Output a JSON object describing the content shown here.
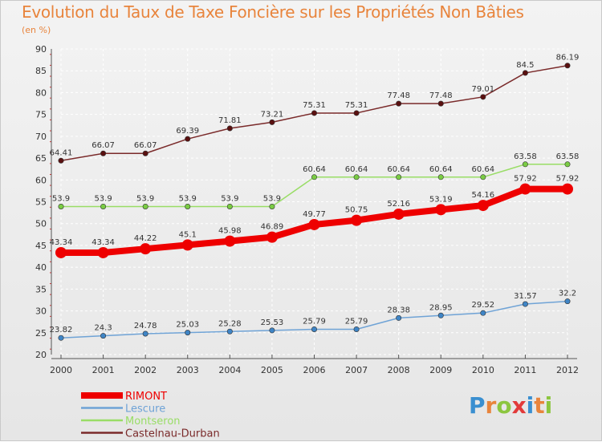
{
  "chart_data": {
    "type": "line",
    "title": "Evolution du Taux de Taxe Foncière sur les Propriétés Non Bâties",
    "subtitle": "(en %)",
    "categories": [
      "2000",
      "2001",
      "2002",
      "2003",
      "2004",
      "2005",
      "2006",
      "2007",
      "2008",
      "2009",
      "2010",
      "2011",
      "2012"
    ],
    "ylim": [
      20,
      90
    ],
    "yticks": [
      20,
      25,
      30,
      35,
      40,
      45,
      50,
      55,
      60,
      65,
      70,
      75,
      80,
      85,
      90
    ],
    "grid": true,
    "legend_position": "bottom-left",
    "series": [
      {
        "name": "Castelnau-Durban",
        "color": "#7a2a2a",
        "marker": "#5a1010",
        "values": [
          64.41,
          66.07,
          66.07,
          69.39,
          71.81,
          73.21,
          75.31,
          75.31,
          77.48,
          77.48,
          79.01,
          84.5,
          86.19
        ],
        "labels": [
          "64.41",
          "66.07",
          "66.07",
          "69.39",
          "71.81",
          "73.21",
          "75.31",
          "75.31",
          "77.48",
          "77.48",
          "79.01",
          "84.5",
          "86.19"
        ]
      },
      {
        "name": "Montseron",
        "color": "#99dd66",
        "marker": "#7acc44",
        "values": [
          53.9,
          53.9,
          53.9,
          53.9,
          53.9,
          53.9,
          60.64,
          60.64,
          60.64,
          60.64,
          60.64,
          63.58,
          63.58
        ],
        "labels": [
          "53.9",
          "53.9",
          "53.9",
          "53.9",
          "53.9",
          "53.9",
          "60.64",
          "60.64",
          "60.64",
          "60.64",
          "60.64",
          "63.58",
          "63.58"
        ]
      },
      {
        "name": "RIMONT",
        "color": "#ee0000",
        "marker": "#ee0000",
        "values": [
          43.34,
          43.34,
          44.22,
          45.1,
          45.98,
          46.89,
          49.77,
          50.75,
          52.16,
          53.19,
          54.16,
          57.92,
          57.92
        ],
        "labels": [
          "43.34",
          "43.34",
          "44.22",
          "45.1",
          "45.98",
          "46.89",
          "49.77",
          "50.75",
          "52.16",
          "53.19",
          "54.16",
          "57.92",
          "57.92"
        ]
      },
      {
        "name": "Lescure",
        "color": "#6fa3d6",
        "marker": "#3f85c6",
        "values": [
          23.82,
          24.3,
          24.78,
          25.03,
          25.28,
          25.53,
          25.79,
          25.79,
          28.38,
          28.95,
          29.52,
          31.57,
          32.2
        ],
        "labels": [
          "23.82",
          "24.3",
          "24.78",
          "25.03",
          "25.28",
          "25.53",
          "25.79",
          "25.79",
          "28.38",
          "28.95",
          "29.52",
          "31.57",
          "32.2"
        ]
      }
    ],
    "legend": [
      {
        "name": "RIMONT",
        "color": "#ee0000"
      },
      {
        "name": "Lescure",
        "color": "#6fa3d6"
      },
      {
        "name": "Montseron",
        "color": "#99dd66"
      },
      {
        "name": "Castelnau-Durban",
        "color": "#7a2a2a"
      }
    ]
  },
  "logo": {
    "letters": [
      {
        "ch": "P",
        "color": "#3a8fd0"
      },
      {
        "ch": "r",
        "color": "#e8843c"
      },
      {
        "ch": "o",
        "color": "#8cc63f"
      },
      {
        "ch": "x",
        "color": "#e23a3a"
      },
      {
        "ch": "i",
        "color": "#3a8fd0"
      },
      {
        "ch": "t",
        "color": "#e8843c"
      },
      {
        "ch": "i",
        "color": "#8cc63f"
      }
    ]
  }
}
